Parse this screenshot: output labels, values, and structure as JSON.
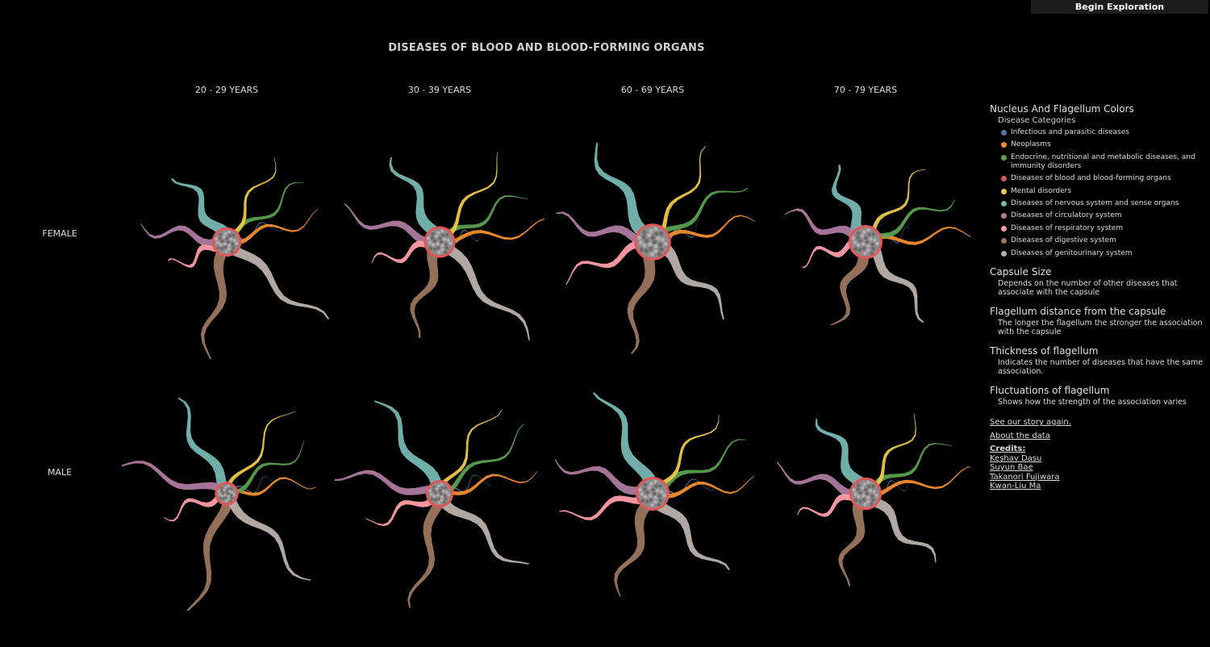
{
  "topbar": {
    "begin_label": "Begin Exploration"
  },
  "title": "DISEASES OF BLOOD AND BLOOD-FORMING ORGANS",
  "columns": [
    "20 - 29 YEARS",
    "30 - 39 YEARS",
    "60 - 69 YEARS",
    "70 - 79 YEARS"
  ],
  "rows": [
    "FEMALE",
    "MALE"
  ],
  "legend": {
    "colors_title": "Nucleus And Flagellum Colors",
    "colors_sub": "Disease Categories",
    "categories": [
      {
        "label": "Infectious and parasitic diseases",
        "color": "#4e79a7"
      },
      {
        "label": "Neoplasms",
        "color": "#f28e2b"
      },
      {
        "label": "Endocrine, nutritional and metabolic diseases, and immunity disorders",
        "color": "#59a14f"
      },
      {
        "label": "Diseases of blood and blood-forming organs",
        "color": "#e15759"
      },
      {
        "label": "Mental disorders",
        "color": "#edc948"
      },
      {
        "label": "Diseases of nervous system and sense organs",
        "color": "#76b7b2"
      },
      {
        "label": "Diseases of circulatory system",
        "color": "#b07aa1"
      },
      {
        "label": "Diseases of respiratory system",
        "color": "#ff9da7"
      },
      {
        "label": "Diseases of digestive system",
        "color": "#9c755f"
      },
      {
        "label": "Diseases of genitourinary system",
        "color": "#bab0ac"
      }
    ],
    "capsule_title": "Capsule Size",
    "capsule_text": "Depends on the number of other diseases that associate with the capsule",
    "distance_title": "Flagellum distance from the capsule",
    "distance_text": "The longer the flagellum the stronger the association with the capsule",
    "thickness_title": "Thickness of flagellum",
    "thickness_text": "Indicates the number of diseases that have the same association.",
    "fluct_title": "Fluctuations of flagellum",
    "fluct_text": "Shows how the strength of the association varies"
  },
  "links": {
    "story": "See our story again.",
    "about": "About the data",
    "credits_title": "Credits:",
    "credits": [
      "Keshav Dasu",
      "Suyun Bae",
      "Takanori Fujiwara",
      "Kwan-Liu Ma"
    ]
  },
  "cells": [
    {
      "row": 0,
      "col": 0,
      "r": 0.85,
      "len": [
        0.55,
        0.95,
        0.95,
        0.35,
        0.95,
        0.8,
        0.85,
        0.55,
        1.2,
        1.3
      ]
    },
    {
      "row": 0,
      "col": 1,
      "r": 0.92,
      "len": [
        0.35,
        1.15,
        0.95,
        0.25,
        1.05,
        0.95,
        1.0,
        0.65,
        0.95,
        1.35
      ]
    },
    {
      "row": 0,
      "col": 2,
      "r": 1.1,
      "len": [
        0.4,
        1.0,
        1.05,
        0.25,
        1.05,
        1.1,
        0.95,
        0.9,
        1.1,
        1.0
      ]
    },
    {
      "row": 0,
      "col": 3,
      "r": 1.0,
      "len": [
        0.35,
        1.1,
        0.95,
        0.25,
        0.9,
        0.75,
        0.8,
        0.6,
        0.85,
        0.95
      ]
    },
    {
      "row": 1,
      "col": 0,
      "r": 0.65,
      "len": [
        0.45,
        0.9,
        0.95,
        0.25,
        1.1,
        1.1,
        1.25,
        0.65,
        1.4,
        1.25
      ]
    },
    {
      "row": 1,
      "col": 1,
      "r": 0.78,
      "len": [
        0.45,
        1.0,
        1.1,
        0.25,
        1.05,
        1.15,
        1.15,
        0.75,
        1.2,
        1.15
      ]
    },
    {
      "row": 1,
      "col": 2,
      "r": 1.0,
      "len": [
        0.55,
        1.0,
        1.05,
        0.25,
        1.0,
        1.15,
        1.0,
        0.9,
        1.05,
        1.05
      ]
    },
    {
      "row": 1,
      "col": 3,
      "r": 0.95,
      "len": [
        0.35,
        1.1,
        0.95,
        0.25,
        0.9,
        0.85,
        0.9,
        0.65,
        0.9,
        0.95
      ]
    }
  ]
}
